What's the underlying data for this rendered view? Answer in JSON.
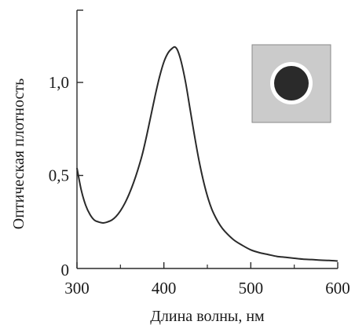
{
  "chart_data": {
    "type": "line",
    "title": "",
    "xlabel": "Длина волны, нм",
    "ylabel": "Оптическая плотность",
    "xlim": [
      300,
      600
    ],
    "ylim": [
      0,
      1.2
    ],
    "grid": false,
    "legend": "none",
    "x_ticks": [
      300,
      400,
      500,
      600
    ],
    "x_tick_labels": [
      "300",
      "400",
      "500",
      "600"
    ],
    "x_minor_ticks": [
      350,
      450,
      550
    ],
    "y_ticks": [
      0,
      0.5,
      1.0
    ],
    "y_tick_labels": [
      "0",
      "0,5",
      "1,0"
    ],
    "series": [
      {
        "x": [
          300,
          305,
          310,
          315,
          320,
          325,
          330,
          335,
          340,
          345,
          350,
          355,
          360,
          365,
          370,
          375,
          380,
          385,
          390,
          395,
          400,
          405,
          410,
          413,
          416,
          420,
          425,
          430,
          435,
          440,
          445,
          450,
          455,
          460,
          465,
          470,
          480,
          490,
          500,
          510,
          520,
          530,
          540,
          550,
          560,
          570,
          580,
          590,
          600
        ],
        "y": [
          0.54,
          0.42,
          0.34,
          0.29,
          0.26,
          0.25,
          0.245,
          0.25,
          0.26,
          0.28,
          0.31,
          0.35,
          0.4,
          0.46,
          0.53,
          0.61,
          0.71,
          0.82,
          0.93,
          1.03,
          1.11,
          1.16,
          1.185,
          1.19,
          1.17,
          1.11,
          1.0,
          0.86,
          0.72,
          0.59,
          0.48,
          0.39,
          0.32,
          0.27,
          0.23,
          0.2,
          0.155,
          0.125,
          0.1,
          0.085,
          0.075,
          0.065,
          0.06,
          0.055,
          0.05,
          0.048,
          0.045,
          0.043,
          0.04
        ]
      }
    ],
    "color": "#2a2a2a"
  },
  "inset": {
    "background_color": "#cbcbcb",
    "ring_color": "#ffffff",
    "core_color": "#2a2a2a"
  }
}
